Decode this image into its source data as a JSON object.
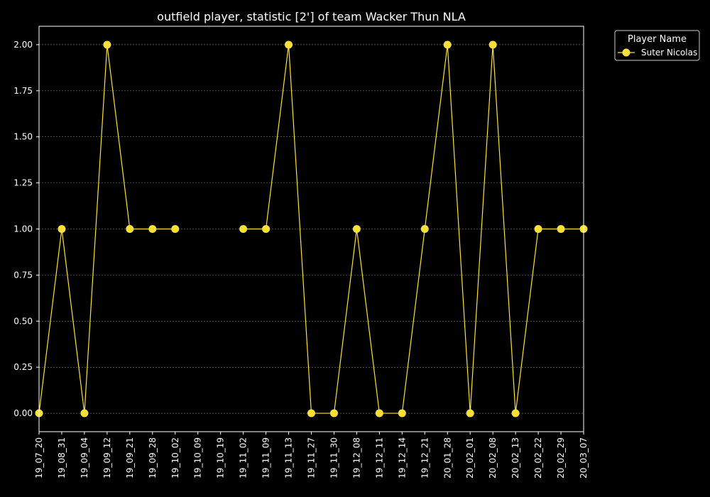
{
  "chart_data": {
    "type": "line",
    "title": "outfield player, statistic [2'] of team Wacker Thun NLA",
    "xlabel": "",
    "ylabel": "",
    "categories": [
      "19_07_20",
      "19_08_31",
      "19_09_04",
      "19_09_12",
      "19_09_21",
      "19_09_28",
      "19_10_02",
      "19_10_09",
      "19_10_19",
      "19_11_02",
      "19_11_09",
      "19_11_13",
      "19_11_27",
      "19_11_30",
      "19_12_08",
      "19_12_11",
      "19_12_14",
      "19_12_21",
      "20_01_28",
      "20_02_01",
      "20_02_08",
      "20_02_13",
      "20_02_22",
      "20_02_29",
      "20_03_07"
    ],
    "series": [
      {
        "name": "Suter Nicolas",
        "color": "#ffe135",
        "values": [
          0,
          1,
          0,
          2,
          1,
          1,
          1,
          null,
          null,
          1,
          1,
          2,
          0,
          0,
          1,
          0,
          0,
          1,
          2,
          0,
          2,
          0,
          1,
          1,
          1
        ]
      }
    ],
    "ylim": [
      -0.1,
      2.1
    ],
    "yticks": [
      0.0,
      0.25,
      0.5,
      0.75,
      1.0,
      1.25,
      1.5,
      1.75,
      2.0
    ],
    "ytick_labels": [
      "0.00",
      "0.25",
      "0.50",
      "0.75",
      "1.00",
      "1.25",
      "1.50",
      "1.75",
      "2.00"
    ],
    "grid": true,
    "legend": {
      "title": "Player Name",
      "position": "outside-top-right"
    },
    "colors": {
      "background": "#000000",
      "axes": "#ffffff",
      "grid": "#808080",
      "text": "#ffffff"
    }
  }
}
